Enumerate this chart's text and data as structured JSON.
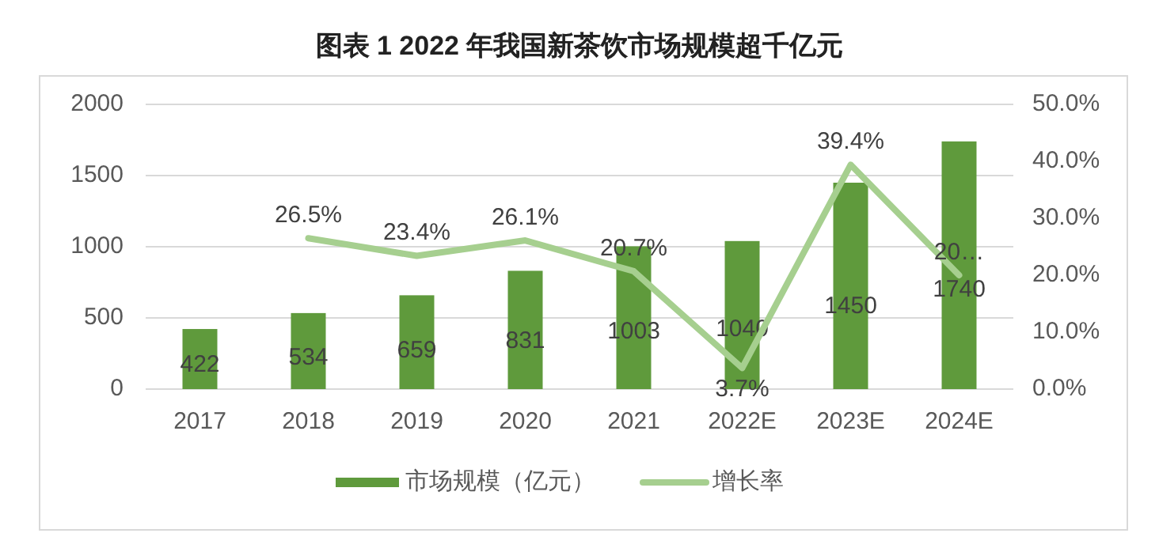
{
  "chart_data": {
    "type": "bar",
    "title": "图表 1 2022 年我国新茶饮市场规模超千亿元",
    "categories": [
      "2017",
      "2018",
      "2019",
      "2020",
      "2021",
      "2022E",
      "2023E",
      "2024E"
    ],
    "series": [
      {
        "name": "市场规模（亿元）",
        "color": "#5f9a3c",
        "values": [
          422,
          534,
          659,
          831,
          1003,
          1040,
          1450,
          1740
        ],
        "data_labels": true
      },
      {
        "name": "增长率",
        "type": "line",
        "axis": "y2",
        "color": "#a6cf8f",
        "values": [
          null,
          26.5,
          23.4,
          26.1,
          20.7,
          3.7,
          39.4,
          20.0
        ],
        "value_labels": [
          null,
          "26.5%",
          "23.4%",
          "26.1%",
          "20.7%",
          "3.7%",
          "39.4%",
          "20…"
        ]
      }
    ],
    "ylim": [
      0,
      2000
    ],
    "yticks": [
      0,
      500,
      1000,
      1500,
      2000
    ],
    "y2lim": [
      0,
      50
    ],
    "y2ticks": [
      {
        "value": 0,
        "label": "0.0%"
      },
      {
        "value": 10,
        "label": "10.0%"
      },
      {
        "value": 20,
        "label": "20.0%"
      },
      {
        "value": 30,
        "label": "30.0%"
      },
      {
        "value": 40,
        "label": "40.0%"
      },
      {
        "value": 50,
        "label": "50.0%"
      }
    ],
    "grid": "y",
    "legend": "bottom",
    "marker": "none"
  }
}
